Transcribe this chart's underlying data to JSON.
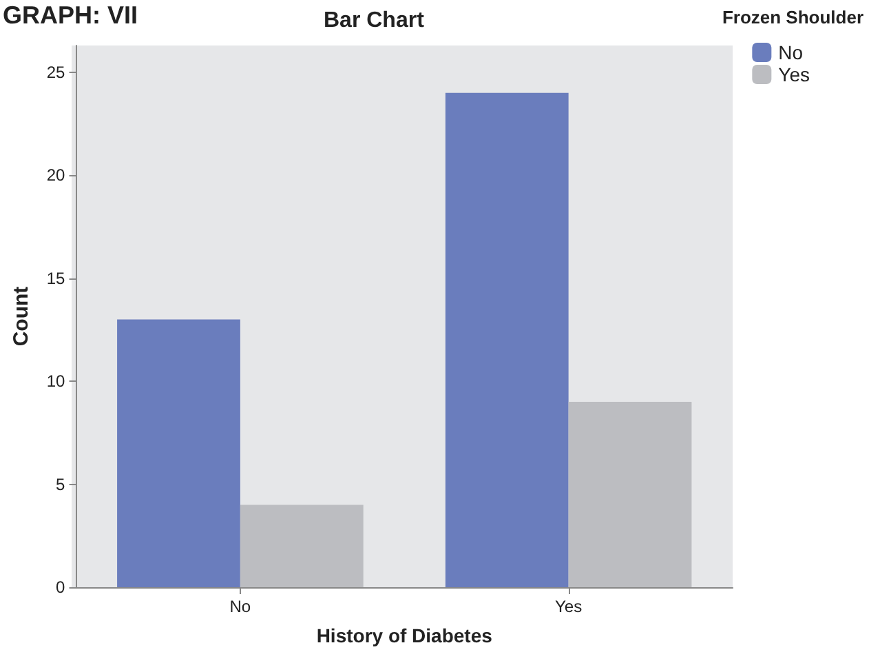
{
  "chart_data": {
    "type": "bar",
    "title": "Bar Chart",
    "xlabel": "History of Diabetes",
    "ylabel": "Count",
    "legend_title": "Frozen Shoulder",
    "annotations": [
      "GRAPH: VII"
    ],
    "categories": [
      "No",
      "Yes"
    ],
    "series": [
      {
        "name": "No",
        "color": "#6a7dbd",
        "values": [
          13,
          24
        ]
      },
      {
        "name": "Yes",
        "color": "#bcbdc1",
        "values": [
          4,
          9
        ]
      }
    ],
    "ylim": [
      0,
      26.3
    ],
    "yticks": [
      0,
      5,
      10,
      15,
      20,
      25
    ],
    "grid": false,
    "legend": "top right"
  }
}
